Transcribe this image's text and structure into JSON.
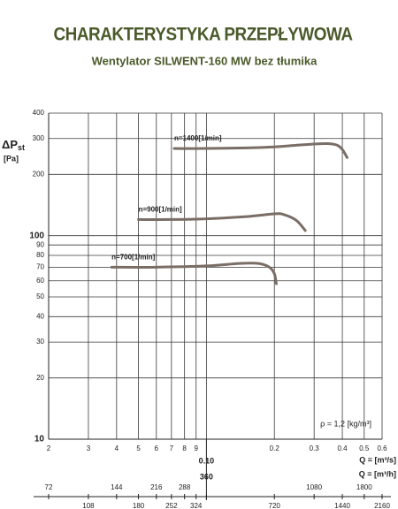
{
  "chart_data": {
    "type": "line",
    "title": "CHARAKTERYSTYKA PRZEPŁYWOWA",
    "subtitle": "Wentylator SILWENT-160 MW bez tłumika",
    "ylabel": {
      "symbol": "ΔP",
      "subscript": "st",
      "unit": "[Pa]"
    },
    "xlabel": "Q = [m³/s]",
    "x2label": "Q = [m³/h]",
    "annotation": "ρ = 1,2 [kg/m³]",
    "log_x": true,
    "log_y": true,
    "grid": true,
    "xlim": [
      0.02,
      0.6
    ],
    "xticks": [
      {
        "value": 0.02,
        "label": "2"
      },
      {
        "value": 0.03,
        "label": "3"
      },
      {
        "value": 0.04,
        "label": "4"
      },
      {
        "value": 0.05,
        "label": "5"
      },
      {
        "value": 0.06,
        "label": "6"
      },
      {
        "value": 0.07,
        "label": "7"
      },
      {
        "value": 0.08,
        "label": "8"
      },
      {
        "value": 0.09,
        "label": "9"
      },
      {
        "value": 0.1,
        "label": "0.10"
      },
      0.2,
      0.3,
      0.4,
      0.5,
      0.6
    ],
    "x2lim": [
      72,
      2160
    ],
    "x2ticks": [
      72,
      108,
      144,
      180,
      216,
      252,
      288,
      324,
      360,
      720,
      1080,
      1440,
      1800,
      2160
    ],
    "ylim": [
      10,
      400
    ],
    "yticks": [
      10,
      20,
      30,
      40,
      50,
      60,
      70,
      80,
      90,
      100,
      200,
      300,
      400
    ],
    "series": [
      {
        "name": "n=1400[1/min]",
        "color": "#7a6d65",
        "x": [
          0.072,
          0.1,
          0.15,
          0.2,
          0.25,
          0.3,
          0.35,
          0.38,
          0.4,
          0.42
        ],
        "values": [
          268,
          268,
          270,
          273,
          278,
          282,
          283,
          278,
          265,
          242
        ]
      },
      {
        "name": "n=900[1/min]",
        "color": "#7a6d65",
        "x": [
          0.05,
          0.07,
          0.1,
          0.15,
          0.2,
          0.22,
          0.25,
          0.274
        ],
        "values": [
          120,
          120,
          121,
          124,
          128,
          127,
          119,
          106
        ]
      },
      {
        "name": "n=700[1/min]",
        "color": "#7a6d65",
        "x": [
          0.038,
          0.06,
          0.1,
          0.14,
          0.17,
          0.19,
          0.2,
          0.204
        ],
        "values": [
          70,
          70,
          71,
          73,
          73,
          70,
          65,
          58
        ]
      }
    ]
  }
}
